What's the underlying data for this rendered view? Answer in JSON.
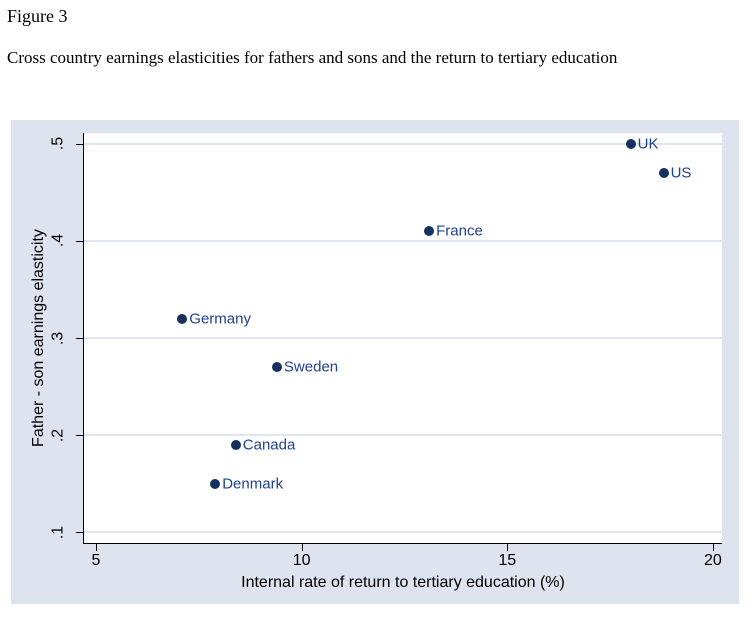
{
  "header": {
    "figure_label": "Figure 3",
    "caption": "Cross country earnings elasticities for fathers and sons and the return to tertiary education"
  },
  "chart_data": {
    "type": "scatter",
    "title": "",
    "xlabel": "Internal rate of return to tertiary education (%)",
    "ylabel": "Father - son earnings elasticity",
    "xlim": [
      4.71,
      20.22
    ],
    "ylim": [
      0.089,
      0.511
    ],
    "x_ticks": [
      5,
      10,
      15,
      20
    ],
    "y_ticks": [
      0.5,
      0.4,
      0.3,
      0.2,
      0.1
    ],
    "y_tick_labels": [
      ".5",
      ".4",
      ".3",
      ".2",
      ".1"
    ],
    "grid": "horizontal",
    "legend": "none",
    "points": [
      {
        "label": "UK",
        "x": 18.0,
        "y": 0.5
      },
      {
        "label": "US",
        "x": 18.8,
        "y": 0.47
      },
      {
        "label": "France",
        "x": 13.1,
        "y": 0.41
      },
      {
        "label": "Germany",
        "x": 7.1,
        "y": 0.32
      },
      {
        "label": "Sweden",
        "x": 9.4,
        "y": 0.27
      },
      {
        "label": "Canada",
        "x": 8.4,
        "y": 0.19
      },
      {
        "label": "Denmark",
        "x": 7.9,
        "y": 0.15
      }
    ],
    "colors": {
      "marker": "#15315d",
      "marker_label": "#1e4191",
      "outer_bg": "#dde3ef",
      "plot_bg": "#ffffff",
      "gridline": "#dfe5f2",
      "axis": "#000000"
    }
  }
}
